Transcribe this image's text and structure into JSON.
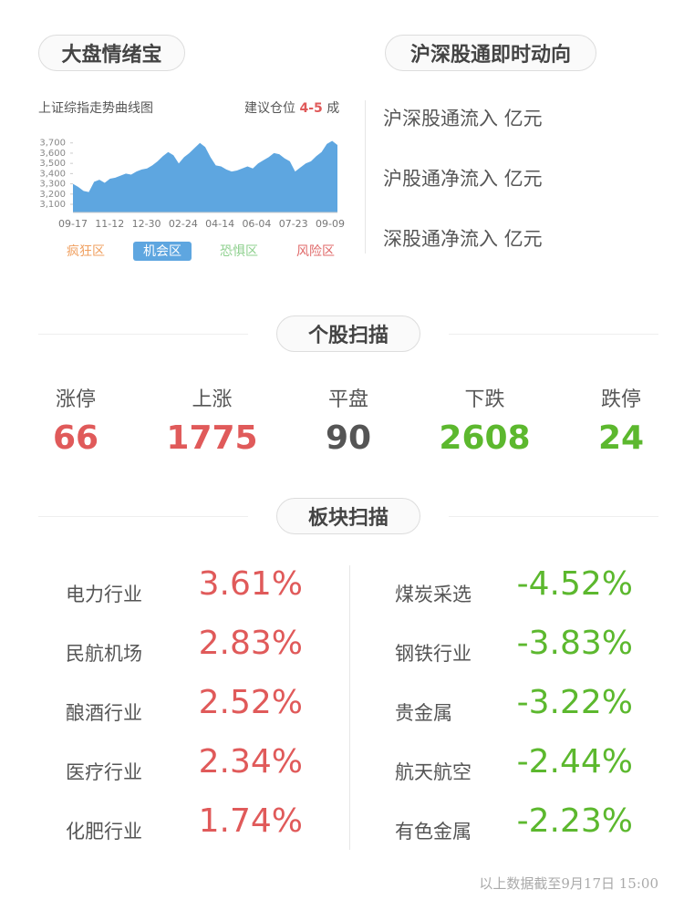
{
  "header": {
    "left": "大盘情绪宝",
    "right": "沪深股通即时动向"
  },
  "chart_data": {
    "type": "area",
    "title": "上证综指走势曲线图",
    "color": "#5ea6e0",
    "values": [
      3300,
      3270,
      3230,
      3220,
      3320,
      3340,
      3310,
      3350,
      3360,
      3380,
      3400,
      3390,
      3420,
      3440,
      3450,
      3480,
      3520,
      3570,
      3610,
      3580,
      3500,
      3560,
      3600,
      3650,
      3700,
      3660,
      3560,
      3480,
      3470,
      3440,
      3420,
      3430,
      3450,
      3470,
      3450,
      3500,
      3530,
      3560,
      3600,
      3590,
      3550,
      3520,
      3420,
      3460,
      3500,
      3520,
      3570,
      3610,
      3690,
      3720,
      3680
    ],
    "xtick_labels": [
      "09-17",
      "11-12",
      "12-30",
      "02-24",
      "04-14",
      "06-04",
      "07-23",
      "09-09"
    ],
    "ylim": [
      3020,
      3760
    ],
    "yticks": [
      {
        "value": 3100,
        "label": "3,100"
      },
      {
        "value": 3200,
        "label": "3,200"
      },
      {
        "value": 3300,
        "label": "3,300"
      },
      {
        "value": 3400,
        "label": "3,400"
      },
      {
        "value": 3500,
        "label": "3,500"
      },
      {
        "value": 3600,
        "label": "3,600"
      },
      {
        "value": 3700,
        "label": "3,700"
      }
    ],
    "zones": [
      {
        "name": "疯狂区",
        "color": "#f0a060",
        "active": false
      },
      {
        "name": "机会区",
        "color": "#5ea6e0",
        "active": true
      },
      {
        "name": "恐惧区",
        "color": "#8fd08f",
        "active": false
      },
      {
        "name": "风险区",
        "color": "#e06a6a",
        "active": false
      }
    ]
  },
  "position": {
    "label": "建议仓位",
    "value": "4-5",
    "unit": "成"
  },
  "flows": [
    "沪深股通流入 亿元",
    "沪股通净流入 亿元",
    "深股通净流入 亿元"
  ],
  "stock_scan": {
    "title": "个股扫描",
    "items": [
      {
        "label": "涨停",
        "value": 66,
        "color": "#e05a5a"
      },
      {
        "label": "上涨",
        "value": 1775,
        "color": "#e05a5a"
      },
      {
        "label": "平盘",
        "value": 90,
        "color": "#555555"
      },
      {
        "label": "下跌",
        "value": 2608,
        "color": "#5cb82e"
      },
      {
        "label": "跌停",
        "value": 24,
        "color": "#5cb82e"
      }
    ]
  },
  "sector_scan": {
    "title": "板块扫描",
    "gainers": [
      [
        "电力行业",
        "3.61%"
      ],
      [
        "民航机场",
        "2.83%"
      ],
      [
        "酿酒行业",
        "2.52%"
      ],
      [
        "医疗行业",
        "2.34%"
      ],
      [
        "化肥行业",
        "1.74%"
      ]
    ],
    "losers": [
      [
        "煤炭采选",
        "-4.52%"
      ],
      [
        "钢铁行业",
        "-3.83%"
      ],
      [
        "贵金属",
        "-3.22%"
      ],
      [
        "航天航空",
        "-2.44%"
      ],
      [
        "有色金属",
        "-2.23%"
      ]
    ]
  },
  "footer": "以上数据截至9月17日 15:00"
}
